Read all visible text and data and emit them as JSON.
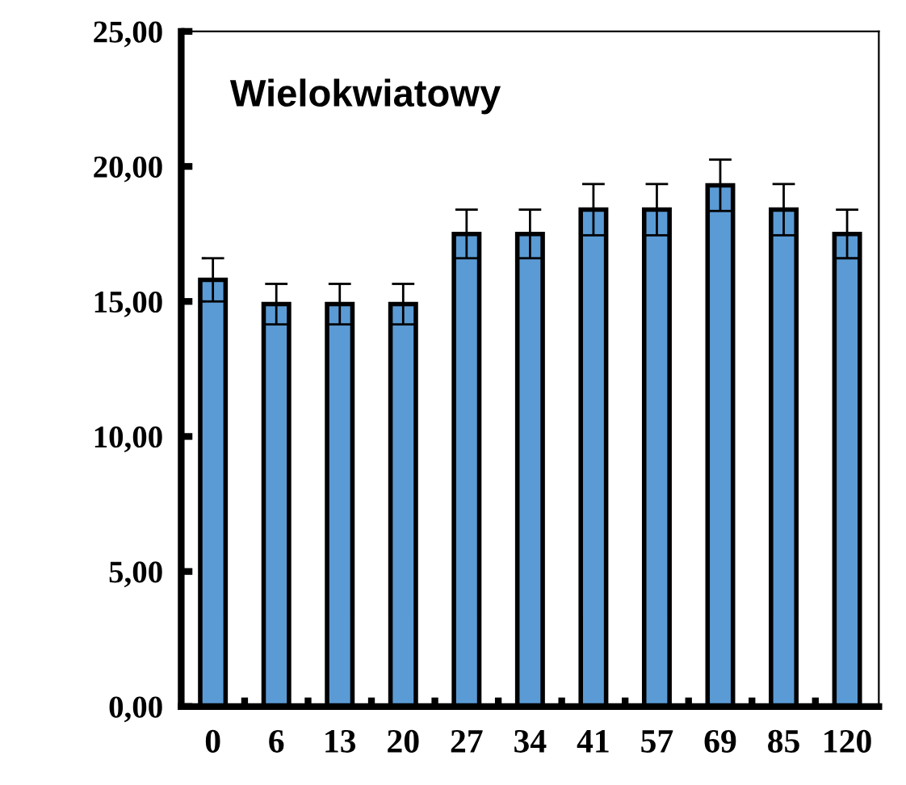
{
  "chart_data": {
    "type": "bar",
    "title": "Wielokwiatowy",
    "categories": [
      "0",
      "6",
      "13",
      "20",
      "27",
      "34",
      "41",
      "57",
      "69",
      "85",
      "120"
    ],
    "values": [
      15.8,
      14.9,
      14.9,
      14.9,
      17.5,
      17.5,
      18.4,
      18.4,
      19.3,
      18.4,
      17.5
    ],
    "errors": [
      0.8,
      0.75,
      0.75,
      0.75,
      0.9,
      0.9,
      0.95,
      0.95,
      0.95,
      0.95,
      0.9
    ],
    "color": "#5b9bd5",
    "ylim": [
      0,
      25
    ],
    "yticks": [
      {
        "value": 0,
        "label": "0,00"
      },
      {
        "value": 5,
        "label": "5,00"
      },
      {
        "value": 10,
        "label": "10,00"
      },
      {
        "value": 15,
        "label": "15,00"
      },
      {
        "value": 20,
        "label": "20,00"
      },
      {
        "value": 25,
        "label": "25,00"
      }
    ],
    "grid": false
  }
}
